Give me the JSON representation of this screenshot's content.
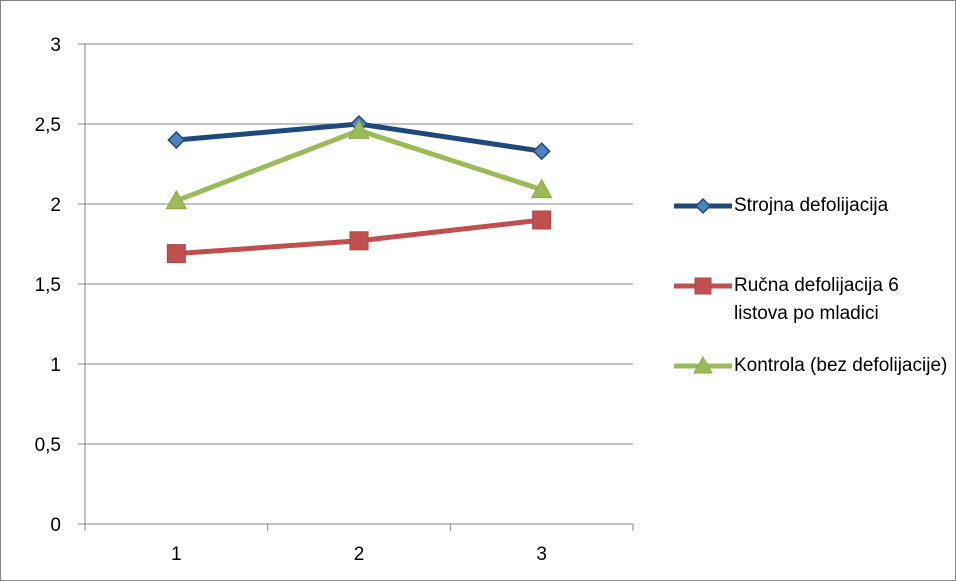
{
  "chart_data": {
    "type": "line",
    "categories": [
      "1",
      "2",
      "3"
    ],
    "ylim": [
      0,
      3
    ],
    "yticks": [
      "0",
      "0,5",
      "1",
      "1,5",
      "2",
      "2,5",
      "3"
    ],
    "ytick_values": [
      0,
      0.5,
      1,
      1.5,
      2,
      2.5,
      3
    ],
    "grid": true,
    "legend_position": "right",
    "series": [
      {
        "name": "Strojna defolijacija",
        "values": [
          2.4,
          2.5,
          2.33
        ],
        "color": "#1F497D",
        "marker": "diamond"
      },
      {
        "name": "Ručna defolijacija 6 listova po mladici",
        "values": [
          1.69,
          1.77,
          1.9
        ],
        "color": "#C0504D",
        "marker": "square"
      },
      {
        "name": "Kontrola (bez defolijacije)",
        "values": [
          2.02,
          2.46,
          2.09
        ],
        "color": "#9BBB59",
        "marker": "triangle"
      }
    ]
  }
}
